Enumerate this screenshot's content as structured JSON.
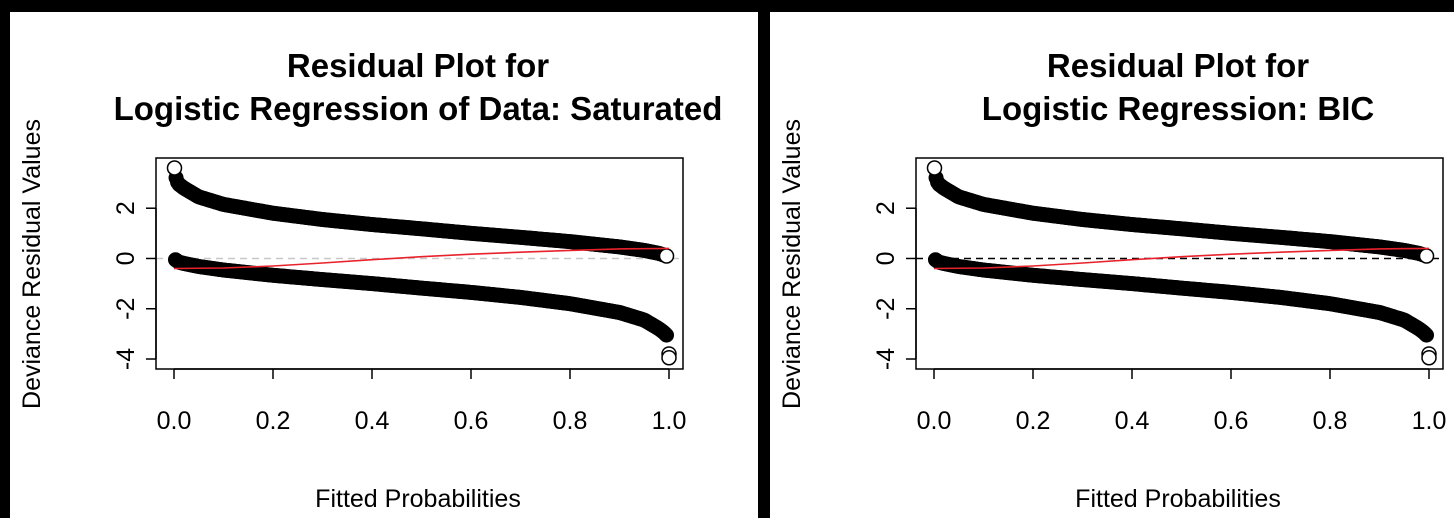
{
  "chart_data": [
    {
      "type": "scatter",
      "title_line1": "Residual Plot for",
      "title_line2": "Logistic Regression of Data: Saturated",
      "xlabel": "Fitted Probabilities",
      "ylabel": "Deviance Residual Values",
      "xlim": [
        0,
        1
      ],
      "ylim": [
        -4,
        3.6
      ],
      "xticks": [
        0.0,
        0.2,
        0.4,
        0.6,
        0.8,
        1.0
      ],
      "xtick_labels": [
        "0.0",
        "0.2",
        "0.4",
        "0.6",
        "0.8",
        "1.0"
      ],
      "yticks": [
        -4,
        -2,
        0,
        2
      ],
      "ytick_labels": [
        "-4",
        "-2",
        "0",
        "2"
      ],
      "reference_line": {
        "y": 0,
        "style": "dashed",
        "color": "#c8c8c8"
      },
      "series": [
        {
          "points": [
            [
              0.001,
              3.6
            ],
            [
              0.005,
              3.1
            ],
            [
              0.01,
              2.95
            ],
            [
              0.02,
              2.8
            ],
            [
              0.05,
              2.45
            ],
            [
              0.1,
              2.15
            ],
            [
              0.2,
              1.8
            ],
            [
              0.3,
              1.55
            ],
            [
              0.4,
              1.35
            ],
            [
              0.5,
              1.18
            ],
            [
              0.6,
              1.0
            ],
            [
              0.7,
              0.84
            ],
            [
              0.8,
              0.67
            ],
            [
              0.9,
              0.46
            ],
            [
              0.95,
              0.32
            ],
            [
              0.98,
              0.2
            ],
            [
              0.995,
              0.1
            ]
          ]
        },
        {
          "points": [
            [
              0.003,
              -0.05
            ],
            [
              0.01,
              -0.15
            ],
            [
              0.02,
              -0.2
            ],
            [
              0.05,
              -0.32
            ],
            [
              0.1,
              -0.46
            ],
            [
              0.2,
              -0.67
            ],
            [
              0.3,
              -0.84
            ],
            [
              0.4,
              -1.0
            ],
            [
              0.5,
              -1.18
            ],
            [
              0.6,
              -1.35
            ],
            [
              0.7,
              -1.55
            ],
            [
              0.8,
              -1.8
            ],
            [
              0.9,
              -2.15
            ],
            [
              0.95,
              -2.45
            ],
            [
              0.98,
              -2.8
            ],
            [
              0.99,
              -2.95
            ],
            [
              0.995,
              -3.05
            ],
            [
              1.0,
              -3.8
            ],
            [
              1.0,
              -3.95
            ]
          ]
        }
      ],
      "smooth_line": {
        "color": "#e8222b",
        "points": [
          [
            0.0,
            -0.4
          ],
          [
            0.1,
            -0.38
          ],
          [
            0.2,
            -0.3
          ],
          [
            0.3,
            -0.18
          ],
          [
            0.4,
            -0.05
          ],
          [
            0.5,
            0.07
          ],
          [
            0.6,
            0.17
          ],
          [
            0.7,
            0.25
          ],
          [
            0.8,
            0.32
          ],
          [
            0.9,
            0.38
          ],
          [
            1.0,
            0.4
          ]
        ]
      },
      "grid": false
    },
    {
      "type": "scatter",
      "title_line1": "Residual Plot for",
      "title_line2": "Logistic Regression: BIC",
      "xlabel": "Fitted Probabilities",
      "ylabel": "Deviance Residual Values",
      "xlim": [
        0,
        1
      ],
      "ylim": [
        -4,
        3.6
      ],
      "xticks": [
        0.0,
        0.2,
        0.4,
        0.6,
        0.8,
        1.0
      ],
      "xtick_labels": [
        "0.0",
        "0.2",
        "0.4",
        "0.6",
        "0.8",
        "1.0"
      ],
      "yticks": [
        -4,
        -2,
        0,
        2
      ],
      "ytick_labels": [
        "-4",
        "-2",
        "0",
        "2"
      ],
      "reference_line": {
        "y": 0,
        "style": "dashed",
        "color": "#000000"
      },
      "series": [
        {
          "points": [
            [
              0.001,
              3.6
            ],
            [
              0.005,
              3.1
            ],
            [
              0.01,
              2.95
            ],
            [
              0.02,
              2.8
            ],
            [
              0.05,
              2.45
            ],
            [
              0.1,
              2.15
            ],
            [
              0.2,
              1.8
            ],
            [
              0.3,
              1.55
            ],
            [
              0.4,
              1.35
            ],
            [
              0.5,
              1.18
            ],
            [
              0.6,
              1.0
            ],
            [
              0.7,
              0.84
            ],
            [
              0.8,
              0.67
            ],
            [
              0.9,
              0.46
            ],
            [
              0.95,
              0.32
            ],
            [
              0.98,
              0.2
            ],
            [
              0.995,
              0.1
            ]
          ]
        },
        {
          "points": [
            [
              0.003,
              -0.05
            ],
            [
              0.01,
              -0.15
            ],
            [
              0.02,
              -0.2
            ],
            [
              0.05,
              -0.32
            ],
            [
              0.1,
              -0.46
            ],
            [
              0.2,
              -0.67
            ],
            [
              0.3,
              -0.84
            ],
            [
              0.4,
              -1.0
            ],
            [
              0.5,
              -1.18
            ],
            [
              0.6,
              -1.35
            ],
            [
              0.7,
              -1.55
            ],
            [
              0.8,
              -1.8
            ],
            [
              0.9,
              -2.15
            ],
            [
              0.95,
              -2.45
            ],
            [
              0.98,
              -2.8
            ],
            [
              0.99,
              -2.95
            ],
            [
              0.995,
              -3.05
            ],
            [
              1.0,
              -3.8
            ],
            [
              1.0,
              -3.95
            ]
          ]
        }
      ],
      "smooth_line": {
        "color": "#e8222b",
        "points": [
          [
            0.0,
            -0.4
          ],
          [
            0.1,
            -0.38
          ],
          [
            0.2,
            -0.3
          ],
          [
            0.3,
            -0.18
          ],
          [
            0.4,
            -0.05
          ],
          [
            0.5,
            0.07
          ],
          [
            0.6,
            0.17
          ],
          [
            0.7,
            0.25
          ],
          [
            0.8,
            0.32
          ],
          [
            0.9,
            0.38
          ],
          [
            1.0,
            0.4
          ]
        ]
      },
      "grid": false
    }
  ]
}
